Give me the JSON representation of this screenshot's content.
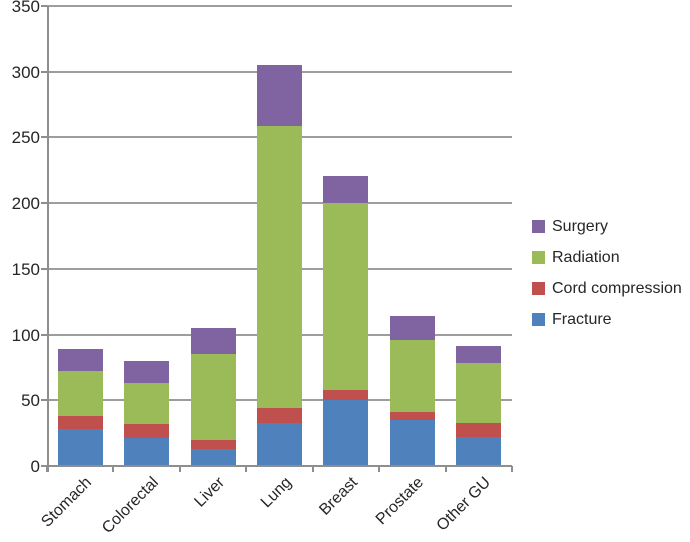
{
  "figure": {
    "background": "#ffffff",
    "axis_color": "#8e8e8e",
    "gridline_color": "#9d9d9d",
    "text_color": "#262626"
  },
  "chart_data": {
    "type": "bar",
    "stacked": true,
    "title": "",
    "xlabel": "",
    "ylabel": "",
    "categories": [
      "Stomach",
      "Colorectal",
      "Liver",
      "Lung",
      "Breast",
      "Prostate",
      "Other GU"
    ],
    "series": [
      {
        "name": "Fracture",
        "color": "#4F81BD",
        "values": [
          28,
          21,
          13,
          33,
          50,
          35,
          22
        ]
      },
      {
        "name": "Cord compression",
        "color": "#C0504D",
        "values": [
          10,
          11,
          7,
          11,
          8,
          6,
          11
        ]
      },
      {
        "name": "Radiation",
        "color": "#9BBB59",
        "values": [
          34,
          31,
          65,
          215,
          142,
          55,
          45
        ]
      },
      {
        "name": "Surgery",
        "color": "#8064A2",
        "values": [
          17,
          17,
          20,
          46,
          21,
          18,
          13
        ]
      }
    ],
    "totals": [
      89,
      80,
      105,
      305,
      221,
      114,
      91
    ],
    "ylim": [
      0,
      350
    ],
    "ytick_step": 50,
    "yticks": [
      0,
      50,
      100,
      150,
      200,
      250,
      300,
      350
    ],
    "grid": true,
    "legend_position": "right",
    "legend_order": [
      "Surgery",
      "Radiation",
      "Cord compression",
      "Fracture"
    ]
  }
}
